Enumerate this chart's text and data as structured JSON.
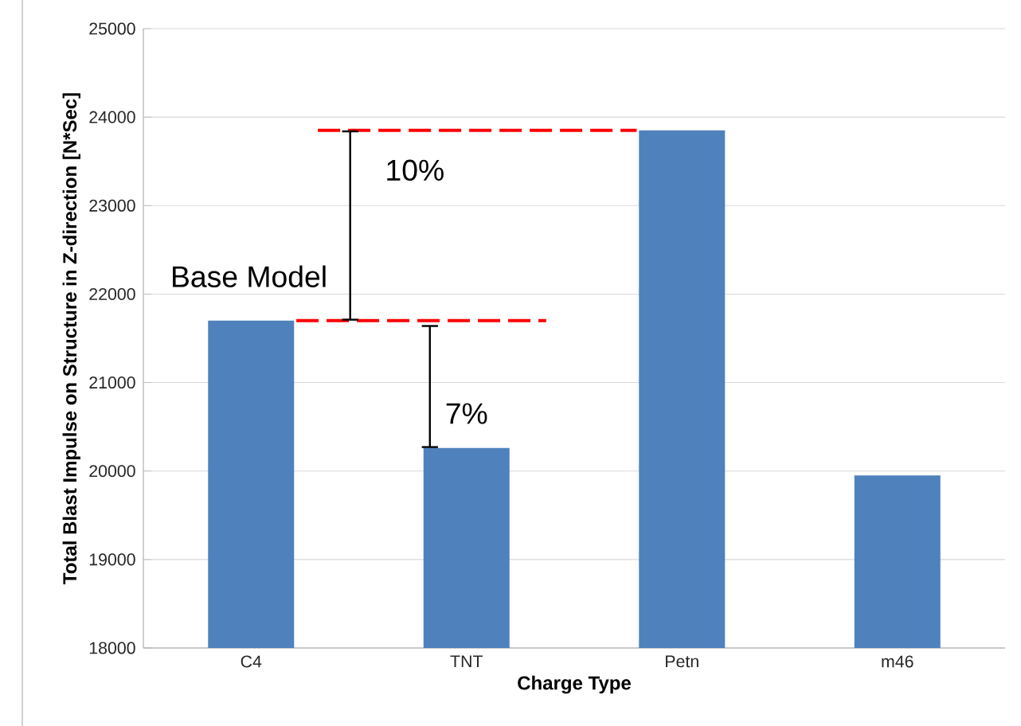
{
  "chart_data": {
    "type": "bar",
    "xlabel": "Charge Type",
    "ylabel": "Total Blast Impulse on Structure in Z-direction [N*Sec]",
    "categories": [
      "C4",
      "TNT",
      "Petn",
      "m46"
    ],
    "values": [
      21700,
      20260,
      23850,
      19950
    ],
    "color": "#4f81bd",
    "ylim": [
      18000,
      25000
    ],
    "yticks": [
      18000,
      19000,
      20000,
      21000,
      22000,
      23000,
      24000,
      25000
    ],
    "grid": "y",
    "ref_lines": [
      {
        "axis": "y",
        "value": 21700,
        "color": "#ff0000",
        "line_style": "dashed"
      },
      {
        "axis": "y",
        "value": 23850,
        "color": "#ff0000",
        "line_style": "dashed"
      }
    ],
    "annotations": [
      "10%",
      {
        "text": "7%",
        "y": 20260
      },
      "Base Model"
    ]
  }
}
